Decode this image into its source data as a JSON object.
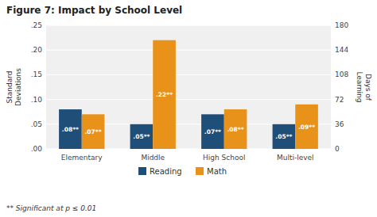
{
  "chart_data": {
    "type": "bar",
    "title": "Figure 7: Impact by School Level",
    "categories": [
      "Elementary",
      "Middle",
      "High School",
      "Multi-level"
    ],
    "series": [
      {
        "name": "Reading",
        "color": "#1F4E79",
        "values": [
          0.08,
          0.05,
          0.07,
          0.05
        ],
        "value_labels": [
          ".08**",
          ".05**",
          ".07**",
          ".05**"
        ]
      },
      {
        "name": "Math",
        "color": "#E8921A",
        "values": [
          0.07,
          0.22,
          0.08,
          0.09
        ],
        "value_labels": [
          ".07**",
          ".22**",
          ".08**",
          ".09**"
        ]
      }
    ],
    "ylabel": "Standard\nDeviations",
    "y2label": "Days of\nLearning",
    "ylim": [
      0,
      0.25
    ],
    "yticks": [
      {
        "value": 0.0,
        "label": ".00"
      },
      {
        "value": 0.05,
        "label": ".05"
      },
      {
        "value": 0.1,
        "label": ".10"
      },
      {
        "value": 0.15,
        "label": ".15"
      },
      {
        "value": 0.2,
        "label": ".20"
      },
      {
        "value": 0.25,
        "label": ".25"
      }
    ],
    "y2lim": [
      0,
      180
    ],
    "y2ticks": [
      0,
      36,
      72,
      108,
      144,
      180
    ],
    "annotations": [
      "** Significant at p ≤ 0.01"
    ],
    "grid": true,
    "legend": "bottom",
    "data_labels": true
  }
}
